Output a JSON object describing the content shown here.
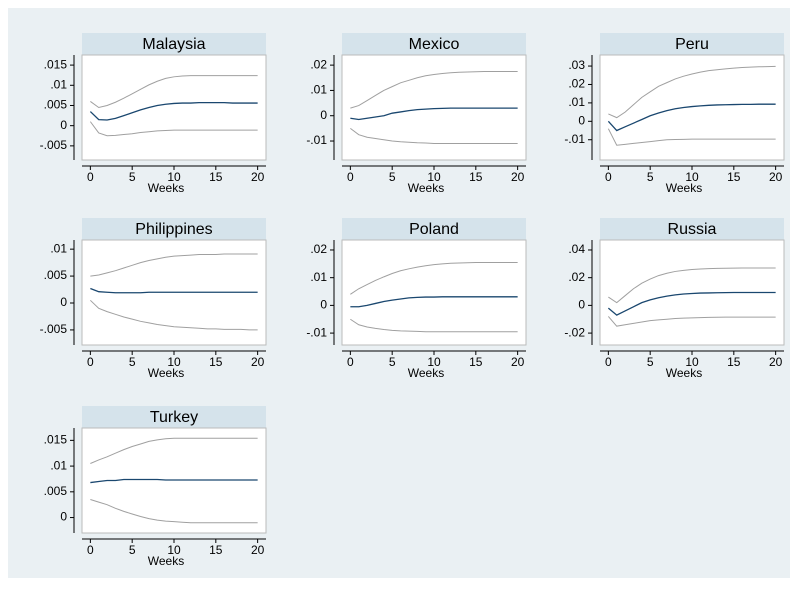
{
  "chart_data": [
    {
      "type": "line",
      "title": "Malaysia",
      "xlabel": "Weeks",
      "x": [
        0,
        1,
        2,
        3,
        4,
        5,
        6,
        7,
        8,
        9,
        10,
        11,
        12,
        13,
        14,
        15,
        16,
        17,
        18,
        19,
        20
      ],
      "series": [
        {
          "color": "#a0a0a0",
          "values": [
            0.006,
            0.0045,
            0.005,
            0.0058,
            0.0068,
            0.0079,
            0.009,
            0.0101,
            0.011,
            0.0117,
            0.0121,
            0.0123,
            0.0124,
            0.0124,
            0.0124,
            0.0124,
            0.0124,
            0.0124,
            0.0124,
            0.0124,
            0.0124
          ]
        },
        {
          "color": "#a0a0a0",
          "values": [
            0.001,
            -0.0018,
            -0.0025,
            -0.0024,
            -0.0022,
            -0.002,
            -0.0017,
            -0.0015,
            -0.0013,
            -0.0012,
            -0.0011,
            -0.0011,
            -0.0011,
            -0.0011,
            -0.0011,
            -0.0011,
            -0.0011,
            -0.0011,
            -0.0011,
            -0.0011,
            -0.0011
          ]
        },
        {
          "color": "#1a476f",
          "values": [
            0.0035,
            0.0015,
            0.0014,
            0.0018,
            0.0025,
            0.0032,
            0.0039,
            0.0045,
            0.005,
            0.0053,
            0.0055,
            0.0056,
            0.0056,
            0.0057,
            0.0057,
            0.0057,
            0.0057,
            0.0056,
            0.0056,
            0.0056,
            0.0056
          ]
        }
      ],
      "xlim": [
        -1,
        21
      ],
      "xticks": [
        0,
        5,
        10,
        15,
        20
      ],
      "ylim": [
        -0.0085,
        0.0175
      ],
      "yticks": [
        {
          "value": -0.005,
          "label": "-.005"
        },
        0,
        {
          "value": 0.005,
          "label": ".005"
        },
        {
          "value": 0.01,
          "label": ".01"
        },
        {
          "value": 0.015,
          "label": ".015"
        }
      ]
    },
    {
      "type": "line",
      "title": "Mexico",
      "xlabel": "Weeks",
      "x": [
        0,
        1,
        2,
        3,
        4,
        5,
        6,
        7,
        8,
        9,
        10,
        11,
        12,
        13,
        14,
        15,
        16,
        17,
        18,
        19,
        20
      ],
      "series": [
        {
          "color": "#a0a0a0",
          "values": [
            0.003,
            0.004,
            0.006,
            0.008,
            0.01,
            0.0115,
            0.013,
            0.014,
            0.015,
            0.0158,
            0.0163,
            0.0167,
            0.017,
            0.0172,
            0.0173,
            0.0174,
            0.0175,
            0.0175,
            0.0175,
            0.0175,
            0.0175
          ]
        },
        {
          "color": "#a0a0a0",
          "values": [
            -0.005,
            -0.0075,
            -0.0085,
            -0.009,
            -0.0095,
            -0.01,
            -0.0103,
            -0.0105,
            -0.0107,
            -0.0108,
            -0.011,
            -0.011,
            -0.011,
            -0.011,
            -0.011,
            -0.011,
            -0.011,
            -0.011,
            -0.011,
            -0.011,
            -0.011
          ]
        },
        {
          "color": "#1a476f",
          "values": [
            -0.001,
            -0.0015,
            -0.001,
            -0.0005,
            0,
            0.001,
            0.0015,
            0.002,
            0.0024,
            0.0026,
            0.0028,
            0.0029,
            0.003,
            0.003,
            0.003,
            0.003,
            0.003,
            0.003,
            0.003,
            0.003,
            0.003
          ]
        }
      ],
      "xlim": [
        -1,
        21
      ],
      "xticks": [
        0,
        5,
        10,
        15,
        20
      ],
      "ylim": [
        -0.0175,
        0.024
      ],
      "yticks": [
        {
          "value": -0.01,
          "label": "-.01"
        },
        0,
        {
          "value": 0.01,
          "label": ".01"
        },
        {
          "value": 0.02,
          "label": ".02"
        }
      ]
    },
    {
      "type": "line",
      "title": "Peru",
      "xlabel": "Weeks",
      "x": [
        0,
        1,
        2,
        3,
        4,
        5,
        6,
        7,
        8,
        9,
        10,
        11,
        12,
        13,
        14,
        15,
        16,
        17,
        18,
        19,
        20
      ],
      "series": [
        {
          "color": "#a0a0a0",
          "values": [
            0.004,
            0.002,
            0.005,
            0.009,
            0.013,
            0.016,
            0.019,
            0.021,
            0.023,
            0.0245,
            0.0257,
            0.0267,
            0.0275,
            0.028,
            0.0285,
            0.0289,
            0.0292,
            0.0294,
            0.0296,
            0.0297,
            0.0298
          ]
        },
        {
          "color": "#a0a0a0",
          "values": [
            -0.004,
            -0.013,
            -0.0125,
            -0.012,
            -0.0115,
            -0.011,
            -0.0105,
            -0.01,
            -0.0099,
            -0.0098,
            -0.0097,
            -0.0097,
            -0.0097,
            -0.0097,
            -0.0097,
            -0.0097,
            -0.0097,
            -0.0097,
            -0.0097,
            -0.0097,
            -0.0097
          ]
        },
        {
          "color": "#1a476f",
          "values": [
            0,
            -0.005,
            -0.003,
            -0.001,
            0.001,
            0.003,
            0.0045,
            0.0058,
            0.0068,
            0.0075,
            0.008,
            0.0084,
            0.0087,
            0.0089,
            0.009,
            0.0091,
            0.0092,
            0.0092,
            0.0093,
            0.0093,
            0.0093
          ]
        }
      ],
      "xlim": [
        -1,
        21
      ],
      "xticks": [
        0,
        5,
        10,
        15,
        20
      ],
      "ylim": [
        -0.021,
        0.036
      ],
      "yticks": [
        {
          "value": -0.01,
          "label": "-.01"
        },
        0,
        {
          "value": 0.01,
          "label": ".01"
        },
        {
          "value": 0.02,
          "label": ".02"
        },
        {
          "value": 0.03,
          "label": ".03"
        }
      ]
    },
    {
      "type": "line",
      "title": "Philippines",
      "xlabel": "Weeks",
      "x": [
        0,
        1,
        2,
        3,
        4,
        5,
        6,
        7,
        8,
        9,
        10,
        11,
        12,
        13,
        14,
        15,
        16,
        17,
        18,
        19,
        20
      ],
      "series": [
        {
          "color": "#a0a0a0",
          "values": [
            0.005,
            0.0052,
            0.0056,
            0.006,
            0.0065,
            0.007,
            0.0075,
            0.0079,
            0.0082,
            0.0085,
            0.0087,
            0.0088,
            0.0089,
            0.009,
            0.009,
            0.009,
            0.0091,
            0.0091,
            0.0091,
            0.0091,
            0.0091
          ]
        },
        {
          "color": "#a0a0a0",
          "values": [
            0.0005,
            -0.001,
            -0.0016,
            -0.0021,
            -0.0026,
            -0.003,
            -0.0034,
            -0.0037,
            -0.004,
            -0.0042,
            -0.0044,
            -0.0045,
            -0.0046,
            -0.0047,
            -0.0048,
            -0.0048,
            -0.0049,
            -0.0049,
            -0.0049,
            -0.005,
            -0.005
          ]
        },
        {
          "color": "#1a476f",
          "values": [
            0.0027,
            0.0021,
            0.002,
            0.0019,
            0.0019,
            0.0019,
            0.0019,
            0.002,
            0.002,
            0.002,
            0.002,
            0.002,
            0.002,
            0.002,
            0.002,
            0.002,
            0.002,
            0.002,
            0.002,
            0.002,
            0.002
          ]
        }
      ],
      "xlim": [
        -1,
        21
      ],
      "xticks": [
        0,
        5,
        10,
        15,
        20
      ],
      "ylim": [
        -0.0078,
        0.0117
      ],
      "yticks": [
        {
          "value": -0.005,
          "label": "-.005"
        },
        0,
        {
          "value": 0.005,
          "label": ".005"
        },
        {
          "value": 0.01,
          "label": ".01"
        }
      ]
    },
    {
      "type": "line",
      "title": "Poland",
      "xlabel": "Weeks",
      "x": [
        0,
        1,
        2,
        3,
        4,
        5,
        6,
        7,
        8,
        9,
        10,
        11,
        12,
        13,
        14,
        15,
        16,
        17,
        18,
        19,
        20
      ],
      "series": [
        {
          "color": "#a0a0a0",
          "values": [
            0.004,
            0.006,
            0.0075,
            0.009,
            0.0103,
            0.0115,
            0.0125,
            0.0132,
            0.0138,
            0.0143,
            0.0147,
            0.015,
            0.0152,
            0.0153,
            0.0154,
            0.0155,
            0.0155,
            0.0155,
            0.0155,
            0.0155,
            0.0155
          ]
        },
        {
          "color": "#a0a0a0",
          "values": [
            -0.005,
            -0.007,
            -0.0078,
            -0.0083,
            -0.0087,
            -0.009,
            -0.0092,
            -0.0093,
            -0.0094,
            -0.0095,
            -0.0095,
            -0.0095,
            -0.0095,
            -0.0095,
            -0.0095,
            -0.0095,
            -0.0095,
            -0.0095,
            -0.0095,
            -0.0095,
            -0.0095
          ]
        },
        {
          "color": "#1a476f",
          "values": [
            -0.0005,
            -0.0005,
            0,
            0.0007,
            0.0014,
            0.0019,
            0.0023,
            0.0027,
            0.0029,
            0.003,
            0.003,
            0.0031,
            0.0031,
            0.0031,
            0.0031,
            0.0031,
            0.0031,
            0.0031,
            0.0031,
            0.0031,
            0.0031
          ]
        }
      ],
      "xlim": [
        -1,
        21
      ],
      "xticks": [
        0,
        5,
        10,
        15,
        20
      ],
      "ylim": [
        -0.0143,
        0.0236
      ],
      "yticks": [
        {
          "value": -0.01,
          "label": "-.01"
        },
        0,
        {
          "value": 0.01,
          "label": ".01"
        },
        {
          "value": 0.02,
          "label": ".02"
        }
      ]
    },
    {
      "type": "line",
      "title": "Russia",
      "xlabel": "Weeks",
      "x": [
        0,
        1,
        2,
        3,
        4,
        5,
        6,
        7,
        8,
        9,
        10,
        11,
        12,
        13,
        14,
        15,
        16,
        17,
        18,
        19,
        20
      ],
      "series": [
        {
          "color": "#a0a0a0",
          "values": [
            0.006,
            0.002,
            0.007,
            0.012,
            0.016,
            0.019,
            0.0215,
            0.0232,
            0.0245,
            0.0253,
            0.0259,
            0.0263,
            0.0265,
            0.0267,
            0.0268,
            0.0269,
            0.027,
            0.027,
            0.027,
            0.027,
            0.027
          ]
        },
        {
          "color": "#a0a0a0",
          "values": [
            -0.008,
            -0.015,
            -0.014,
            -0.013,
            -0.012,
            -0.011,
            -0.0105,
            -0.01,
            -0.0095,
            -0.0092,
            -0.009,
            -0.0088,
            -0.0087,
            -0.0086,
            -0.0085,
            -0.0085,
            -0.0085,
            -0.0085,
            -0.0085,
            -0.0085,
            -0.0085
          ]
        },
        {
          "color": "#1a476f",
          "values": [
            -0.002,
            -0.007,
            -0.004,
            -0.001,
            0.002,
            0.004,
            0.0055,
            0.0067,
            0.0076,
            0.0082,
            0.0086,
            0.0089,
            0.009,
            0.0091,
            0.0092,
            0.0093,
            0.0093,
            0.0093,
            0.0093,
            0.0093,
            0.0093
          ]
        }
      ],
      "xlim": [
        -1,
        21
      ],
      "xticks": [
        0,
        5,
        10,
        15,
        20
      ],
      "ylim": [
        -0.0286,
        0.0472
      ],
      "yticks": [
        {
          "value": -0.02,
          "label": "-.02"
        },
        0,
        {
          "value": 0.02,
          "label": ".02"
        },
        {
          "value": 0.04,
          "label": ".04"
        }
      ]
    },
    {
      "type": "line",
      "title": "Turkey",
      "xlabel": "Weeks",
      "x": [
        0,
        1,
        2,
        3,
        4,
        5,
        6,
        7,
        8,
        9,
        10,
        11,
        12,
        13,
        14,
        15,
        16,
        17,
        18,
        19,
        20
      ],
      "series": [
        {
          "color": "#a0a0a0",
          "values": [
            0.0105,
            0.0112,
            0.0118,
            0.0125,
            0.0132,
            0.0138,
            0.0143,
            0.0148,
            0.0151,
            0.0153,
            0.0154,
            0.0154,
            0.0154,
            0.0154,
            0.0154,
            0.0154,
            0.0154,
            0.0154,
            0.0154,
            0.0154,
            0.0154
          ]
        },
        {
          "color": "#a0a0a0",
          "values": [
            0.0035,
            0.003,
            0.0025,
            0.0018,
            0.0012,
            0.0007,
            0.0002,
            -0.0002,
            -0.0005,
            -0.0007,
            -0.0008,
            -0.0009,
            -0.001,
            -0.001,
            -0.001,
            -0.001,
            -0.001,
            -0.001,
            -0.001,
            -0.001,
            -0.001
          ]
        },
        {
          "color": "#1a476f",
          "values": [
            0.0068,
            0.007,
            0.0072,
            0.0072,
            0.0074,
            0.0074,
            0.0074,
            0.0074,
            0.0074,
            0.0073,
            0.0073,
            0.0073,
            0.0073,
            0.0073,
            0.0073,
            0.0073,
            0.0073,
            0.0073,
            0.0073,
            0.0073,
            0.0073
          ]
        }
      ],
      "xlim": [
        -1,
        21
      ],
      "xticks": [
        0,
        5,
        10,
        15,
        20
      ],
      "ylim": [
        -0.003,
        0.0174
      ],
      "yticks": [
        0,
        {
          "value": 0.005,
          "label": ".005"
        },
        {
          "value": 0.01,
          "label": ".01"
        },
        {
          "value": 0.015,
          "label": ".015"
        }
      ]
    }
  ]
}
